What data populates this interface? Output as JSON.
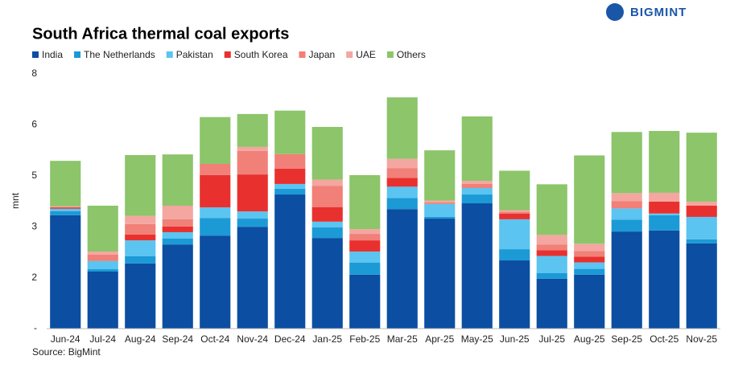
{
  "brand": "BIGMINT",
  "chart_data": {
    "type": "stacked_bar",
    "title": "South Africa thermal coal exports",
    "ylabel": "mnt",
    "source": "Source: BigMint",
    "categories": [
      "Jun-24",
      "Jul-24",
      "Aug-24",
      "Sep-24",
      "Oct-24",
      "Nov-24",
      "Dec-24",
      "Jan-25",
      "Feb-25",
      "Mar-25",
      "Apr-25",
      "May-25",
      "Jun-25",
      "Jul-25",
      "Aug-25",
      "Sep-25",
      "Oct-25",
      "Nov-25"
    ],
    "series": [
      {
        "name": "India",
        "color": "#0b4ea2",
        "values": [
          3.34,
          1.68,
          1.92,
          2.48,
          2.74,
          3.0,
          3.95,
          2.67,
          1.59,
          3.52,
          3.24,
          3.69,
          2.01,
          1.47,
          1.59,
          2.86,
          2.89,
          2.51
        ]
      },
      {
        "name": "The Netherlands",
        "color": "#1b9ad6",
        "values": [
          0.12,
          0.07,
          0.21,
          0.17,
          0.52,
          0.24,
          0.17,
          0.31,
          0.35,
          0.33,
          0.05,
          0.26,
          0.33,
          0.17,
          0.17,
          0.35,
          0.45,
          0.12
        ]
      },
      {
        "name": "Pakistan",
        "color": "#5bc4f0",
        "values": [
          0.07,
          0.24,
          0.47,
          0.19,
          0.31,
          0.21,
          0.14,
          0.17,
          0.33,
          0.33,
          0.38,
          0.19,
          0.88,
          0.5,
          0.19,
          0.33,
          0.05,
          0.66
        ]
      },
      {
        "name": "South Korea",
        "color": "#e8312f",
        "values": [
          0.04,
          0,
          0.17,
          0.17,
          0.95,
          1.09,
          0.45,
          0.43,
          0.33,
          0.26,
          0,
          0,
          0.17,
          0.17,
          0.17,
          0,
          0.35,
          0.33
        ]
      },
      {
        "name": "Japan",
        "color": "#f08078",
        "values": [
          0,
          0.19,
          0.31,
          0.21,
          0.33,
          0.69,
          0.43,
          0.62,
          0.19,
          0.28,
          0.05,
          0.12,
          0.05,
          0.17,
          0.17,
          0.21,
          0,
          0
        ]
      },
      {
        "name": "UAE",
        "color": "#f4a6a0",
        "values": [
          0.03,
          0.09,
          0.24,
          0.4,
          0,
          0.12,
          0,
          0.19,
          0.14,
          0.28,
          0.05,
          0.09,
          0.05,
          0.28,
          0.21,
          0.24,
          0.26,
          0.12
        ]
      },
      {
        "name": "Others",
        "color": "#8cc56a",
        "values": [
          1.34,
          1.35,
          1.79,
          1.51,
          1.38,
          0.97,
          1.28,
          1.55,
          1.59,
          1.81,
          1.48,
          1.9,
          1.16,
          1.49,
          2.6,
          1.8,
          1.82,
          2.03
        ]
      }
    ],
    "ylim": [
      0,
      7.5
    ],
    "yticks": [
      {
        "value": 0,
        "label": "-"
      },
      {
        "value": 1.5,
        "label": "2"
      },
      {
        "value": 3,
        "label": "3"
      },
      {
        "value": 4.5,
        "label": "5"
      },
      {
        "value": 6,
        "label": "6"
      },
      {
        "value": 7.5,
        "label": "8"
      }
    ],
    "grid": false
  }
}
